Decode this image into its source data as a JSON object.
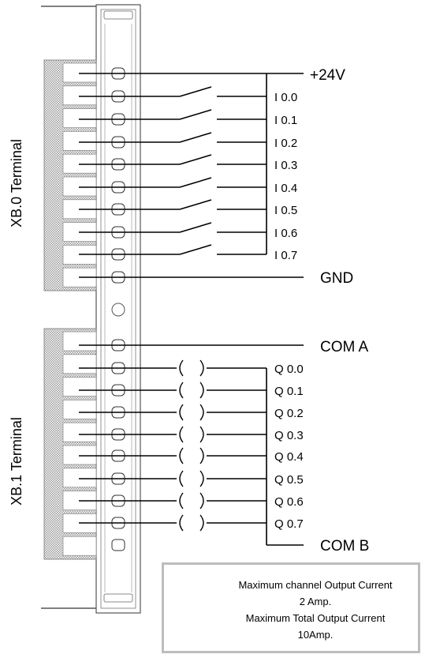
{
  "xb0": {
    "title": "XB.0 Terminal",
    "supply_label": "+24V",
    "ground_label": "GND",
    "inputs": [
      "I 0.0",
      "I 0.1",
      "I 0.2",
      "I 0.3",
      "I 0.4",
      "I 0.5",
      "I 0.6",
      "I 0.7"
    ]
  },
  "xb1": {
    "title": "XB.1 Terminal",
    "common_a_label": "COM A",
    "common_b_label": "COM B",
    "outputs": [
      "Q 0.0",
      "Q 0.1",
      "Q 0.2",
      "Q 0.3",
      "Q 0.4",
      "Q 0.5",
      "Q 0.6",
      "Q 0.7"
    ]
  },
  "warning": {
    "icon": "warning-triangle-icon",
    "line1": "Maximum channel Output Current",
    "line2": "2 Amp.",
    "line3": "Maximum Total Output Current",
    "line4": "10Amp."
  },
  "colors": {
    "line": "#000000",
    "rail_stroke": "#555555",
    "hatch": "#9a9a9a",
    "warning_border": "#bdbdbd"
  }
}
